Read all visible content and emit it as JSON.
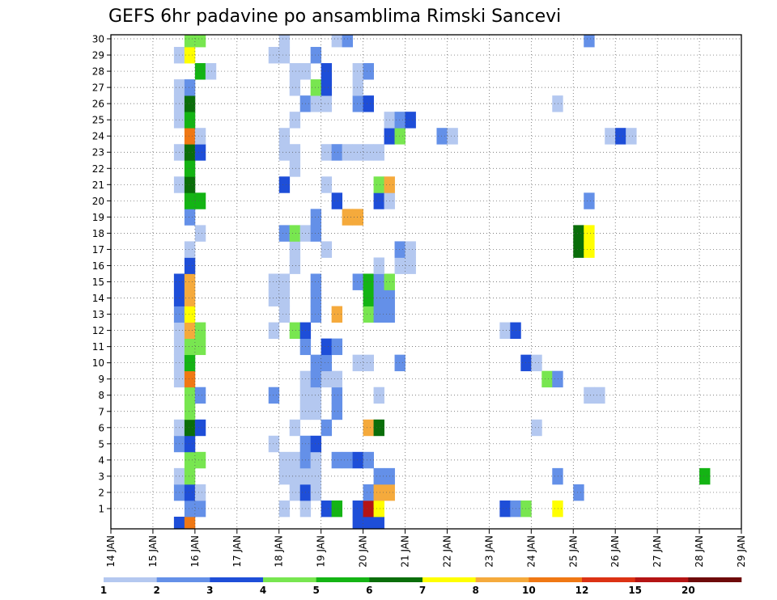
{
  "chart_data": {
    "type": "heatmap",
    "title": "GEFS 6hr padavine po ansamblima Rimski Sancevi",
    "xlabel": "",
    "ylabel": "",
    "x_ticks": [
      "14 JAN",
      "15 JAN",
      "16 JAN",
      "17 JAN",
      "18 JAN",
      "19 JAN",
      "20 JAN",
      "21 JAN",
      "22 JAN",
      "23 JAN",
      "24 JAN",
      "25 JAN",
      "26 JAN",
      "27 JAN",
      "28 JAN",
      "29 JAN"
    ],
    "y_ticks": [
      "1",
      "2",
      "3",
      "4",
      "5",
      "6",
      "7",
      "8",
      "9",
      "10",
      "11",
      "12",
      "13",
      "14",
      "15",
      "16",
      "17",
      "18",
      "19",
      "20",
      "21",
      "22",
      "23",
      "24",
      "25",
      "26",
      "27",
      "28",
      "29",
      "30"
    ],
    "xlim_days": [
      0,
      15
    ],
    "ylim_members": [
      0,
      30
    ],
    "time_step_days": 0.25,
    "grid": true,
    "colorbar": {
      "position": "bottom",
      "labels": [
        "1",
        "2",
        "3",
        "4",
        "5",
        "6",
        "7",
        "8",
        "10",
        "12",
        "15",
        "20"
      ],
      "colors": [
        "#b4c8f0",
        "#6490e8",
        "#1e4ed8",
        "#78e650",
        "#14b414",
        "#0a6e0a",
        "#ffff00",
        "#f5aa3c",
        "#f07814",
        "#dc3214",
        "#b41414",
        "#6e0a0a"
      ]
    },
    "cells": [
      {
        "d": 1.5,
        "m": 0,
        "c": 2
      },
      {
        "d": 1.75,
        "m": 0,
        "c": 8
      },
      {
        "d": 5.75,
        "m": 0,
        "c": 2
      },
      {
        "d": 6.0,
        "m": 0,
        "c": 2
      },
      {
        "d": 6.25,
        "m": 0,
        "c": 2
      },
      {
        "d": 1.75,
        "m": 1,
        "c": 1
      },
      {
        "d": 2.0,
        "m": 1,
        "c": 1
      },
      {
        "d": 4.0,
        "m": 1,
        "c": 0
      },
      {
        "d": 4.5,
        "m": 1,
        "c": 0
      },
      {
        "d": 5.0,
        "m": 1,
        "c": 2
      },
      {
        "d": 5.25,
        "m": 1,
        "c": 4
      },
      {
        "d": 5.75,
        "m": 1,
        "c": 2
      },
      {
        "d": 6.0,
        "m": 1,
        "c": 10
      },
      {
        "d": 6.25,
        "m": 1,
        "c": 6
      },
      {
        "d": 9.25,
        "m": 1,
        "c": 2
      },
      {
        "d": 9.5,
        "m": 1,
        "c": 1
      },
      {
        "d": 9.75,
        "m": 1,
        "c": 3
      },
      {
        "d": 10.5,
        "m": 1,
        "c": 6
      },
      {
        "d": 1.5,
        "m": 2,
        "c": 1
      },
      {
        "d": 1.75,
        "m": 2,
        "c": 2
      },
      {
        "d": 2.0,
        "m": 2,
        "c": 0
      },
      {
        "d": 4.25,
        "m": 2,
        "c": 0
      },
      {
        "d": 4.5,
        "m": 2,
        "c": 2
      },
      {
        "d": 4.75,
        "m": 2,
        "c": 0
      },
      {
        "d": 6.0,
        "m": 2,
        "c": 1
      },
      {
        "d": 6.25,
        "m": 2,
        "c": 7
      },
      {
        "d": 6.5,
        "m": 2,
        "c": 7
      },
      {
        "d": 11.0,
        "m": 2,
        "c": 1
      },
      {
        "d": 1.5,
        "m": 3,
        "c": 0
      },
      {
        "d": 1.75,
        "m": 3,
        "c": 3
      },
      {
        "d": 4.0,
        "m": 3,
        "c": 0
      },
      {
        "d": 4.25,
        "m": 3,
        "c": 0
      },
      {
        "d": 4.5,
        "m": 3,
        "c": 0
      },
      {
        "d": 4.75,
        "m": 3,
        "c": 0
      },
      {
        "d": 6.25,
        "m": 3,
        "c": 1
      },
      {
        "d": 6.5,
        "m": 3,
        "c": 1
      },
      {
        "d": 10.5,
        "m": 3,
        "c": 1
      },
      {
        "d": 14.0,
        "m": 3,
        "c": 4
      },
      {
        "d": 1.75,
        "m": 4,
        "c": 3
      },
      {
        "d": 2.0,
        "m": 4,
        "c": 3
      },
      {
        "d": 4.0,
        "m": 4,
        "c": 0
      },
      {
        "d": 4.25,
        "m": 4,
        "c": 0
      },
      {
        "d": 4.5,
        "m": 4,
        "c": 1
      },
      {
        "d": 4.75,
        "m": 4,
        "c": 0
      },
      {
        "d": 5.25,
        "m": 4,
        "c": 1
      },
      {
        "d": 5.5,
        "m": 4,
        "c": 1
      },
      {
        "d": 5.75,
        "m": 4,
        "c": 2
      },
      {
        "d": 6.0,
        "m": 4,
        "c": 1
      },
      {
        "d": 1.5,
        "m": 5,
        "c": 1
      },
      {
        "d": 1.75,
        "m": 5,
        "c": 2
      },
      {
        "d": 3.75,
        "m": 5,
        "c": 0
      },
      {
        "d": 4.5,
        "m": 5,
        "c": 1
      },
      {
        "d": 4.75,
        "m": 5,
        "c": 2
      },
      {
        "d": 1.5,
        "m": 6,
        "c": 0
      },
      {
        "d": 1.75,
        "m": 6,
        "c": 5
      },
      {
        "d": 2.0,
        "m": 6,
        "c": 2
      },
      {
        "d": 4.25,
        "m": 6,
        "c": 0
      },
      {
        "d": 5.0,
        "m": 6,
        "c": 1
      },
      {
        "d": 6.0,
        "m": 6,
        "c": 7
      },
      {
        "d": 6.25,
        "m": 6,
        "c": 5
      },
      {
        "d": 10.0,
        "m": 6,
        "c": 0
      },
      {
        "d": 1.75,
        "m": 7,
        "c": 3
      },
      {
        "d": 4.5,
        "m": 7,
        "c": 0
      },
      {
        "d": 4.75,
        "m": 7,
        "c": 0
      },
      {
        "d": 5.25,
        "m": 7,
        "c": 1
      },
      {
        "d": 1.75,
        "m": 8,
        "c": 3
      },
      {
        "d": 2.0,
        "m": 8,
        "c": 1
      },
      {
        "d": 3.75,
        "m": 8,
        "c": 1
      },
      {
        "d": 4.5,
        "m": 8,
        "c": 0
      },
      {
        "d": 4.75,
        "m": 8,
        "c": 0
      },
      {
        "d": 5.25,
        "m": 8,
        "c": 1
      },
      {
        "d": 6.25,
        "m": 8,
        "c": 0
      },
      {
        "d": 11.25,
        "m": 8,
        "c": 0
      },
      {
        "d": 11.5,
        "m": 8,
        "c": 0
      },
      {
        "d": 1.5,
        "m": 9,
        "c": 0
      },
      {
        "d": 1.75,
        "m": 9,
        "c": 8
      },
      {
        "d": 4.5,
        "m": 9,
        "c": 0
      },
      {
        "d": 4.75,
        "m": 9,
        "c": 1
      },
      {
        "d": 5.0,
        "m": 9,
        "c": 0
      },
      {
        "d": 5.25,
        "m": 9,
        "c": 0
      },
      {
        "d": 10.25,
        "m": 9,
        "c": 3
      },
      {
        "d": 10.5,
        "m": 9,
        "c": 1
      },
      {
        "d": 1.5,
        "m": 10,
        "c": 0
      },
      {
        "d": 1.75,
        "m": 10,
        "c": 4
      },
      {
        "d": 4.75,
        "m": 10,
        "c": 1
      },
      {
        "d": 5.0,
        "m": 10,
        "c": 1
      },
      {
        "d": 5.75,
        "m": 10,
        "c": 0
      },
      {
        "d": 6.0,
        "m": 10,
        "c": 0
      },
      {
        "d": 6.75,
        "m": 10,
        "c": 1
      },
      {
        "d": 9.75,
        "m": 10,
        "c": 2
      },
      {
        "d": 10.0,
        "m": 10,
        "c": 0
      },
      {
        "d": 1.5,
        "m": 11,
        "c": 0
      },
      {
        "d": 1.75,
        "m": 11,
        "c": 3
      },
      {
        "d": 2.0,
        "m": 11,
        "c": 3
      },
      {
        "d": 4.5,
        "m": 11,
        "c": 1
      },
      {
        "d": 5.0,
        "m": 11,
        "c": 2
      },
      {
        "d": 5.25,
        "m": 11,
        "c": 1
      },
      {
        "d": 1.5,
        "m": 12,
        "c": 0
      },
      {
        "d": 1.75,
        "m": 12,
        "c": 7
      },
      {
        "d": 2.0,
        "m": 12,
        "c": 3
      },
      {
        "d": 3.75,
        "m": 12,
        "c": 0
      },
      {
        "d": 4.25,
        "m": 12,
        "c": 3
      },
      {
        "d": 4.5,
        "m": 12,
        "c": 2
      },
      {
        "d": 9.25,
        "m": 12,
        "c": 0
      },
      {
        "d": 9.5,
        "m": 12,
        "c": 2
      },
      {
        "d": 1.5,
        "m": 13,
        "c": 1
      },
      {
        "d": 1.75,
        "m": 13,
        "c": 6
      },
      {
        "d": 4.0,
        "m": 13,
        "c": 0
      },
      {
        "d": 4.75,
        "m": 13,
        "c": 1
      },
      {
        "d": 5.25,
        "m": 13,
        "c": 7
      },
      {
        "d": 6.0,
        "m": 13,
        "c": 3
      },
      {
        "d": 6.25,
        "m": 13,
        "c": 1
      },
      {
        "d": 6.5,
        "m": 13,
        "c": 1
      },
      {
        "d": 1.5,
        "m": 14,
        "c": 2
      },
      {
        "d": 1.75,
        "m": 14,
        "c": 7
      },
      {
        "d": 3.75,
        "m": 14,
        "c": 0
      },
      {
        "d": 4.0,
        "m": 14,
        "c": 0
      },
      {
        "d": 4.75,
        "m": 14,
        "c": 1
      },
      {
        "d": 6.0,
        "m": 14,
        "c": 4
      },
      {
        "d": 6.25,
        "m": 14,
        "c": 1
      },
      {
        "d": 6.5,
        "m": 14,
        "c": 1
      },
      {
        "d": 1.5,
        "m": 15,
        "c": 2
      },
      {
        "d": 1.75,
        "m": 15,
        "c": 7
      },
      {
        "d": 3.75,
        "m": 15,
        "c": 0
      },
      {
        "d": 4.0,
        "m": 15,
        "c": 0
      },
      {
        "d": 4.75,
        "m": 15,
        "c": 1
      },
      {
        "d": 5.75,
        "m": 15,
        "c": 1
      },
      {
        "d": 6.0,
        "m": 15,
        "c": 4
      },
      {
        "d": 6.25,
        "m": 15,
        "c": 1
      },
      {
        "d": 6.5,
        "m": 15,
        "c": 3
      },
      {
        "d": 1.75,
        "m": 16,
        "c": 2
      },
      {
        "d": 4.25,
        "m": 16,
        "c": 0
      },
      {
        "d": 6.25,
        "m": 16,
        "c": 0
      },
      {
        "d": 6.75,
        "m": 16,
        "c": 0
      },
      {
        "d": 7.0,
        "m": 16,
        "c": 0
      },
      {
        "d": 1.75,
        "m": 17,
        "c": 0
      },
      {
        "d": 4.25,
        "m": 17,
        "c": 0
      },
      {
        "d": 5.0,
        "m": 17,
        "c": 0
      },
      {
        "d": 6.75,
        "m": 17,
        "c": 1
      },
      {
        "d": 7.0,
        "m": 17,
        "c": 0
      },
      {
        "d": 11.0,
        "m": 17,
        "c": 5
      },
      {
        "d": 11.25,
        "m": 17,
        "c": 6
      },
      {
        "d": 2.0,
        "m": 18,
        "c": 0
      },
      {
        "d": 4.0,
        "m": 18,
        "c": 1
      },
      {
        "d": 4.25,
        "m": 18,
        "c": 3
      },
      {
        "d": 4.5,
        "m": 18,
        "c": 0
      },
      {
        "d": 4.75,
        "m": 18,
        "c": 1
      },
      {
        "d": 11.0,
        "m": 18,
        "c": 5
      },
      {
        "d": 11.25,
        "m": 18,
        "c": 6
      },
      {
        "d": 1.75,
        "m": 19,
        "c": 1
      },
      {
        "d": 4.75,
        "m": 19,
        "c": 1
      },
      {
        "d": 5.5,
        "m": 19,
        "c": 7
      },
      {
        "d": 5.75,
        "m": 19,
        "c": 7
      },
      {
        "d": 1.75,
        "m": 20,
        "c": 4
      },
      {
        "d": 2.0,
        "m": 20,
        "c": 4
      },
      {
        "d": 5.25,
        "m": 20,
        "c": 2
      },
      {
        "d": 6.25,
        "m": 20,
        "c": 2
      },
      {
        "d": 6.5,
        "m": 20,
        "c": 0
      },
      {
        "d": 11.25,
        "m": 20,
        "c": 1
      },
      {
        "d": 1.5,
        "m": 21,
        "c": 0
      },
      {
        "d": 1.75,
        "m": 21,
        "c": 5
      },
      {
        "d": 4.0,
        "m": 21,
        "c": 2
      },
      {
        "d": 5.0,
        "m": 21,
        "c": 0
      },
      {
        "d": 6.25,
        "m": 21,
        "c": 3
      },
      {
        "d": 6.5,
        "m": 21,
        "c": 7
      },
      {
        "d": 1.75,
        "m": 22,
        "c": 4
      },
      {
        "d": 4.25,
        "m": 22,
        "c": 0
      },
      {
        "d": 1.5,
        "m": 23,
        "c": 0
      },
      {
        "d": 1.75,
        "m": 23,
        "c": 5
      },
      {
        "d": 2.0,
        "m": 23,
        "c": 2
      },
      {
        "d": 4.0,
        "m": 23,
        "c": 0
      },
      {
        "d": 4.25,
        "m": 23,
        "c": 0
      },
      {
        "d": 5.0,
        "m": 23,
        "c": 0
      },
      {
        "d": 5.25,
        "m": 23,
        "c": 1
      },
      {
        "d": 5.5,
        "m": 23,
        "c": 0
      },
      {
        "d": 5.75,
        "m": 23,
        "c": 0
      },
      {
        "d": 6.0,
        "m": 23,
        "c": 0
      },
      {
        "d": 6.25,
        "m": 23,
        "c": 0
      },
      {
        "d": 1.75,
        "m": 24,
        "c": 8
      },
      {
        "d": 2.0,
        "m": 24,
        "c": 0
      },
      {
        "d": 4.0,
        "m": 24,
        "c": 0
      },
      {
        "d": 6.5,
        "m": 24,
        "c": 2
      },
      {
        "d": 6.75,
        "m": 24,
        "c": 3
      },
      {
        "d": 7.75,
        "m": 24,
        "c": 1
      },
      {
        "d": 8.0,
        "m": 24,
        "c": 0
      },
      {
        "d": 11.75,
        "m": 24,
        "c": 0
      },
      {
        "d": 12.0,
        "m": 24,
        "c": 2
      },
      {
        "d": 12.25,
        "m": 24,
        "c": 0
      },
      {
        "d": 1.5,
        "m": 25,
        "c": 0
      },
      {
        "d": 1.75,
        "m": 25,
        "c": 4
      },
      {
        "d": 4.25,
        "m": 25,
        "c": 0
      },
      {
        "d": 6.5,
        "m": 25,
        "c": 0
      },
      {
        "d": 6.75,
        "m": 25,
        "c": 1
      },
      {
        "d": 7.0,
        "m": 25,
        "c": 2
      },
      {
        "d": 1.5,
        "m": 26,
        "c": 0
      },
      {
        "d": 1.75,
        "m": 26,
        "c": 5
      },
      {
        "d": 4.5,
        "m": 26,
        "c": 1
      },
      {
        "d": 4.75,
        "m": 26,
        "c": 0
      },
      {
        "d": 5.0,
        "m": 26,
        "c": 0
      },
      {
        "d": 5.75,
        "m": 26,
        "c": 1
      },
      {
        "d": 6.0,
        "m": 26,
        "c": 2
      },
      {
        "d": 10.5,
        "m": 26,
        "c": 0
      },
      {
        "d": 1.5,
        "m": 27,
        "c": 0
      },
      {
        "d": 1.75,
        "m": 27,
        "c": 1
      },
      {
        "d": 4.25,
        "m": 27,
        "c": 0
      },
      {
        "d": 4.75,
        "m": 27,
        "c": 3
      },
      {
        "d": 5.0,
        "m": 27,
        "c": 2
      },
      {
        "d": 5.75,
        "m": 27,
        "c": 0
      },
      {
        "d": 2.0,
        "m": 28,
        "c": 4
      },
      {
        "d": 2.25,
        "m": 28,
        "c": 0
      },
      {
        "d": 4.25,
        "m": 28,
        "c": 0
      },
      {
        "d": 4.5,
        "m": 28,
        "c": 0
      },
      {
        "d": 5.0,
        "m": 28,
        "c": 2
      },
      {
        "d": 5.75,
        "m": 28,
        "c": 0
      },
      {
        "d": 6.0,
        "m": 28,
        "c": 1
      },
      {
        "d": 1.5,
        "m": 29,
        "c": 0
      },
      {
        "d": 1.75,
        "m": 29,
        "c": 6
      },
      {
        "d": 3.75,
        "m": 29,
        "c": 0
      },
      {
        "d": 4.0,
        "m": 29,
        "c": 0
      },
      {
        "d": 4.75,
        "m": 29,
        "c": 1
      },
      {
        "d": 1.75,
        "m": 30,
        "c": 3
      },
      {
        "d": 2.0,
        "m": 30,
        "c": 3
      },
      {
        "d": 4.0,
        "m": 30,
        "c": 0
      },
      {
        "d": 5.25,
        "m": 30,
        "c": 0
      },
      {
        "d": 5.5,
        "m": 30,
        "c": 1
      },
      {
        "d": 11.25,
        "m": 30,
        "c": 1
      }
    ]
  }
}
